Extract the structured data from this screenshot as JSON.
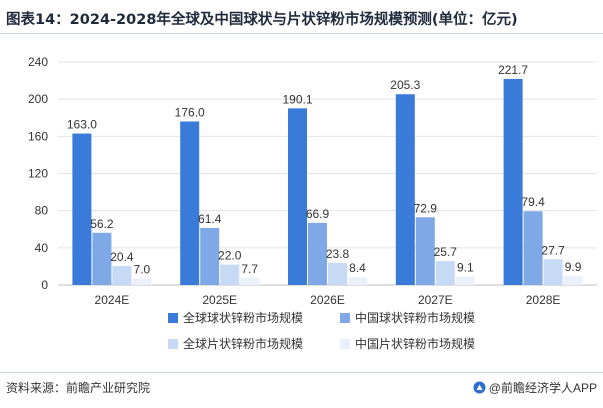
{
  "title": "图表14：2024-2028年全球及中国球状与片状锌粉市场规模预测(单位：亿元)",
  "source": "资料来源：前瞻产业研究院",
  "brand": "@前瞻经济学人APP",
  "brand_logo_icon": "qianzhan-logo-icon",
  "chart_data": {
    "type": "bar",
    "categories": [
      "2024E",
      "2025E",
      "2026E",
      "2027E",
      "2028E"
    ],
    "ylim": [
      0,
      240
    ],
    "yticks": [
      0,
      40,
      80,
      120,
      160,
      200,
      240
    ],
    "grid": true,
    "legend_position": "bottom",
    "series": [
      {
        "name": "全球球状锌粉市场规模",
        "color": "#3a7ad9",
        "values": [
          163.0,
          176.0,
          190.1,
          205.3,
          221.7
        ],
        "labels": [
          "163.0",
          "176.0",
          "190.1",
          "205.3",
          "221.7"
        ]
      },
      {
        "name": "中国球状锌粉市场规模",
        "color": "#7fa9e6",
        "values": [
          56.2,
          61.4,
          66.9,
          72.9,
          79.4
        ],
        "labels": [
          "56.2",
          "61.4",
          "66.9",
          "72.9",
          "79.4"
        ]
      },
      {
        "name": "全球片状锌粉市场规模",
        "color": "#c6daf5",
        "values": [
          20.4,
          22.0,
          23.8,
          25.7,
          27.7
        ],
        "labels": [
          "20.4",
          "22.0",
          "23.8",
          "25.7",
          "27.7"
        ]
      },
      {
        "name": "中国片状锌粉市场规模",
        "color": "#eaf1fb",
        "values": [
          7.0,
          7.7,
          8.4,
          9.1,
          9.9
        ],
        "labels": [
          "7.0",
          "7.7",
          "8.4",
          "9.1",
          "9.9"
        ]
      }
    ]
  }
}
